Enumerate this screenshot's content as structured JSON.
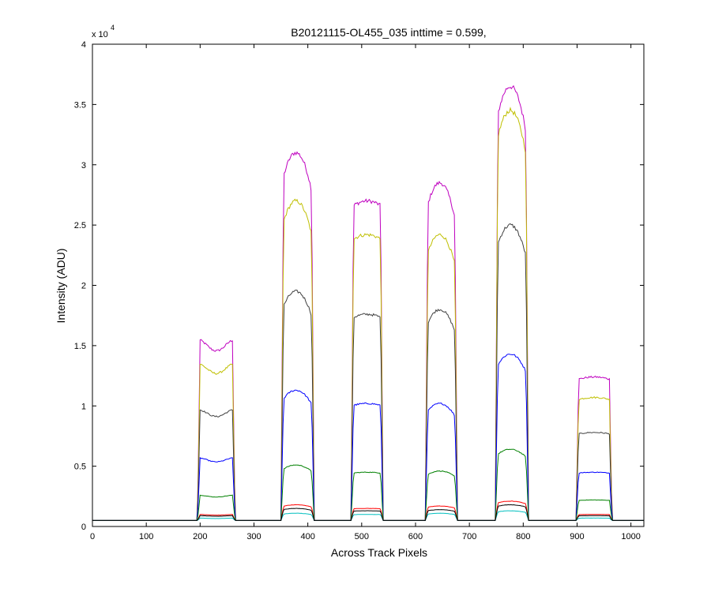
{
  "chart_data": {
    "type": "line",
    "title": "B20121115-OL455_035 inttime = 0.599,",
    "xlabel": "Across Track Pixels",
    "ylabel": "Intensity (ADU)",
    "y_exponent_prefix": "x 10",
    "y_exponent": "4",
    "xlim": [
      0,
      1024
    ],
    "ylim": [
      0,
      40000
    ],
    "xticks": [
      0,
      100,
      200,
      300,
      400,
      500,
      600,
      700,
      800,
      900,
      1000
    ],
    "xtick_labels": [
      "0",
      "100",
      "200",
      "300",
      "400",
      "500",
      "600",
      "700",
      "800",
      "900",
      "1000"
    ],
    "yticks": [
      0,
      5000,
      10000,
      15000,
      20000,
      25000,
      30000,
      35000,
      40000
    ],
    "ytick_labels": [
      "0",
      "0.5",
      "1",
      "1.5",
      "2",
      "2.5",
      "3",
      "3.5",
      "4"
    ],
    "grid": false,
    "baseline": 500,
    "bands": [
      {
        "start": 195,
        "end": 265,
        "shape": "dip"
      },
      {
        "start": 350,
        "end": 412,
        "shape": "peak"
      },
      {
        "start": 480,
        "end": 540,
        "shape": "flat"
      },
      {
        "start": 618,
        "end": 678,
        "shape": "peak"
      },
      {
        "start": 748,
        "end": 810,
        "shape": "peak"
      },
      {
        "start": 898,
        "end": 965,
        "shape": "flat"
      }
    ],
    "series": [
      {
        "color": "#bf00bf",
        "levels": [
          15500,
          31000,
          27000,
          28500,
          36500,
          12400
        ]
      },
      {
        "color": "#bfbf00",
        "levels": [
          13500,
          27000,
          24200,
          24200,
          34500,
          10700
        ]
      },
      {
        "color": "#404040",
        "levels": [
          9700,
          19500,
          17600,
          18000,
          25000,
          7800
        ]
      },
      {
        "color": "#0000ff",
        "levels": [
          5700,
          11300,
          10200,
          10200,
          14300,
          4500
        ]
      },
      {
        "color": "#008000",
        "levels": [
          2600,
          5100,
          4500,
          4600,
          6400,
          2200
        ]
      },
      {
        "color": "#ff0000",
        "levels": [
          1000,
          1800,
          1500,
          1700,
          2100,
          1000
        ]
      },
      {
        "color": "#00bfbf",
        "levels": [
          700,
          1100,
          1000,
          1100,
          1300,
          700
        ]
      },
      {
        "color": "#000000",
        "levels": [
          900,
          1500,
          1300,
          1400,
          1800,
          900
        ]
      }
    ]
  }
}
